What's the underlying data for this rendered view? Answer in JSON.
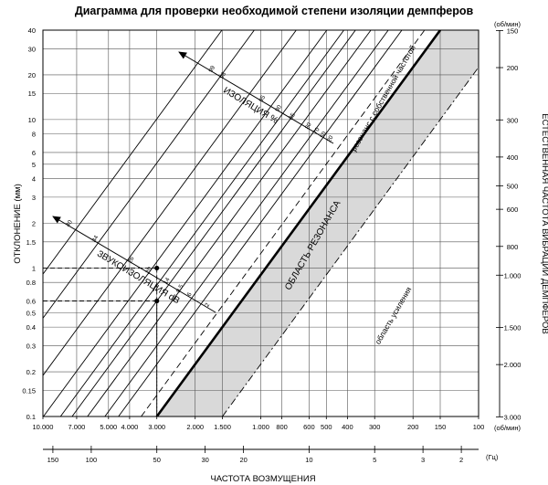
{
  "chart_data": {
    "type": "line",
    "title": "Диаграмма для проверки необходимой степени изоляции демпферов",
    "x_label": "ЧАСТОТА  ВОЗМУЩЕНИЯ",
    "y_label": "ОТКЛОНЕНИЕ (мм)",
    "y2_label": "ЕСТЕСТВЕННАЯ ЧАСТОТА ВИБРАЦИИ ДЕМПФЕРОВ",
    "x_unit": "(об/мин)",
    "x2_unit": "(Гц)",
    "y2_unit": "(об/мин)",
    "x_scale": "log, reversed",
    "y_scale": "log",
    "x_range_rpm": [
      10000,
      100
    ],
    "y_range_mm": [
      0.1,
      40
    ],
    "grid": true,
    "x_ticks": [
      {
        "v": 10000,
        "label": "10.000"
      },
      {
        "v": 7000,
        "label": "7.000"
      },
      {
        "v": 5000,
        "label": "5.000"
      },
      {
        "v": 4000,
        "label": "4.000"
      },
      {
        "v": 3000,
        "label": "3.000"
      },
      {
        "v": 2000,
        "label": "2.000"
      },
      {
        "v": 1500,
        "label": "1.500"
      },
      {
        "v": 1000,
        "label": "1.000"
      },
      {
        "v": 800,
        "label": "800"
      },
      {
        "v": 600,
        "label": "600"
      },
      {
        "v": 500,
        "label": "500"
      },
      {
        "v": 400,
        "label": "400"
      },
      {
        "v": 300,
        "label": "300"
      },
      {
        "v": 200,
        "label": "200"
      },
      {
        "v": 150,
        "label": "150"
      },
      {
        "v": 100,
        "label": "100"
      }
    ],
    "x_ticks_hz": [
      {
        "v": 150,
        "label": "150"
      },
      {
        "v": 100,
        "label": "100"
      },
      {
        "v": 50,
        "label": "50"
      },
      {
        "v": 30,
        "label": "30"
      },
      {
        "v": 20,
        "label": "20"
      },
      {
        "v": 10,
        "label": "10"
      },
      {
        "v": 5,
        "label": "5"
      },
      {
        "v": 3,
        "label": "3"
      },
      {
        "v": 2,
        "label": "2"
      }
    ],
    "y_ticks": [
      {
        "v": 40,
        "label": "40"
      },
      {
        "v": 30,
        "label": "30"
      },
      {
        "v": 20,
        "label": "20"
      },
      {
        "v": 15,
        "label": "15"
      },
      {
        "v": 10,
        "label": "10"
      },
      {
        "v": 8,
        "label": "8"
      },
      {
        "v": 6,
        "label": "6"
      },
      {
        "v": 5,
        "label": "5"
      },
      {
        "v": 4,
        "label": "4"
      },
      {
        "v": 3,
        "label": "3"
      },
      {
        "v": 2,
        "label": "2"
      },
      {
        "v": 1.5,
        "label": "1.5"
      },
      {
        "v": 1,
        "label": "1"
      },
      {
        "v": 0.8,
        "label": "0.8"
      },
      {
        "v": 0.6,
        "label": "0.6"
      },
      {
        "v": 0.5,
        "label": "0.5"
      },
      {
        "v": 0.4,
        "label": "0.4"
      },
      {
        "v": 0.3,
        "label": "0.3"
      },
      {
        "v": 0.2,
        "label": "0.2"
      },
      {
        "v": 0.15,
        "label": "0.15"
      },
      {
        "v": 0.1,
        "label": "0.1"
      }
    ],
    "y2_ticks": [
      {
        "v": 150,
        "label": "150"
      },
      {
        "v": 200,
        "label": "200"
      },
      {
        "v": 300,
        "label": "300"
      },
      {
        "v": 400,
        "label": "400"
      },
      {
        "v": 500,
        "label": "500"
      },
      {
        "v": 600,
        "label": "600"
      },
      {
        "v": 800,
        "label": "800"
      },
      {
        "v": 1000,
        "label": "1.000"
      },
      {
        "v": 1500,
        "label": "1.500"
      },
      {
        "v": 2000,
        "label": "2.000"
      },
      {
        "v": 3000,
        "label": "3.000"
      }
    ],
    "isolation_pct": [
      99,
      98,
      95,
      90,
      85,
      80,
      70,
      50,
      20
    ],
    "sound_db": [
      40,
      34,
      26,
      20,
      14,
      9.5,
      6,
      2
    ],
    "resonance_line_rpm_at_0_1mm": 3000,
    "amplification_line_rpm_at_0_1mm": 1500,
    "example_points": [
      {
        "freq_rpm": 3000,
        "deflection_mm": 1.0
      },
      {
        "freq_rpm": 3000,
        "deflection_mm": 0.6
      }
    ],
    "annotations": {
      "isolation": "ИЗОЛЯЦИЯ %",
      "sound_isolation": "ЗВУКОИЗОЛЯЦИЯ dB",
      "resonance_region": "ОБЛАСТЬ  РЕЗОНАНСА",
      "resonance_line": "резонанс с собственной частотой",
      "amplification": "область усиления"
    }
  }
}
